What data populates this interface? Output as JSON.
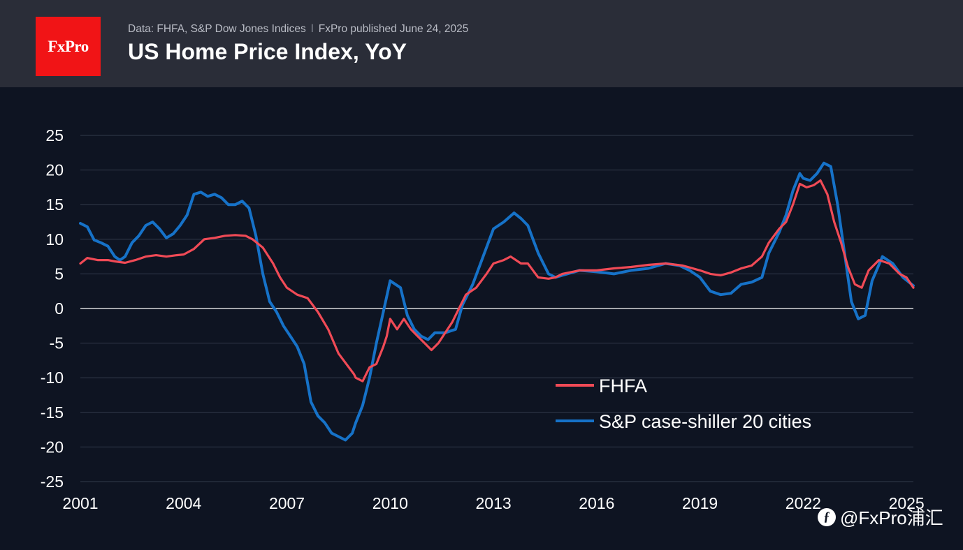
{
  "brand": {
    "logo_text": "FxPro",
    "color": "#f11416"
  },
  "header": {
    "source_text": "Data: FHFA, S&P Dow Jones Indices",
    "publisher_text": "FxPro published June 24, 2025",
    "title": "US Home Price Index, YoY"
  },
  "watermark": {
    "icon": "weibo-icon",
    "text": "@FxPro浦汇"
  },
  "chart_data": {
    "type": "line",
    "title": "US Home Price Index, YoY",
    "xlabel": "",
    "ylabel": "",
    "xlim": [
      2001,
      2025.2
    ],
    "ylim": [
      -25,
      25
    ],
    "x_ticks": [
      "2001",
      "2004",
      "2007",
      "2010",
      "2013",
      "2016",
      "2019",
      "2022",
      "2025"
    ],
    "y_ticks": [
      "25",
      "20",
      "15",
      "10",
      "5",
      "0",
      "-5",
      "-10",
      "-15",
      "-20",
      "-25"
    ],
    "grid": true,
    "legend_position": "lower-right",
    "series": [
      {
        "name": "FHFA",
        "color": "#f04a56",
        "x": [
          2001.0,
          2001.2,
          2001.5,
          2001.8,
          2002.0,
          2002.3,
          2002.6,
          2002.9,
          2003.2,
          2003.5,
          2003.8,
          2004.0,
          2004.3,
          2004.6,
          2004.9,
          2005.2,
          2005.5,
          2005.8,
          2006.0,
          2006.3,
          2006.6,
          2006.8,
          2007.0,
          2007.3,
          2007.6,
          2007.9,
          2008.2,
          2008.5,
          2008.8,
          2008.95,
          2009.0,
          2009.2,
          2009.4,
          2009.6,
          2009.8,
          2009.9,
          2010.0,
          2010.2,
          2010.4,
          2010.6,
          2010.8,
          2011.0,
          2011.2,
          2011.4,
          2011.6,
          2011.8,
          2012.0,
          2012.2,
          2012.5,
          2012.8,
          2013.0,
          2013.3,
          2013.5,
          2013.8,
          2014.0,
          2014.3,
          2014.6,
          2014.8,
          2015.0,
          2015.5,
          2016.0,
          2016.5,
          2017.0,
          2017.5,
          2018.0,
          2018.5,
          2019.0,
          2019.3,
          2019.6,
          2019.9,
          2020.2,
          2020.5,
          2020.8,
          2021.0,
          2021.3,
          2021.5,
          2021.7,
          2021.9,
          2022.1,
          2022.3,
          2022.5,
          2022.7,
          2022.9,
          2023.1,
          2023.3,
          2023.5,
          2023.7,
          2023.9,
          2024.2,
          2024.5,
          2024.8,
          2025.0,
          2025.2
        ],
        "values": [
          6.5,
          7.3,
          7.0,
          7.0,
          6.8,
          6.6,
          7.0,
          7.5,
          7.7,
          7.5,
          7.7,
          7.8,
          8.6,
          10.0,
          10.2,
          10.5,
          10.6,
          10.5,
          10.0,
          8.8,
          6.5,
          4.5,
          3.0,
          2.0,
          1.5,
          -0.5,
          -3.0,
          -6.5,
          -8.5,
          -9.5,
          -10.0,
          -10.5,
          -8.5,
          -8.0,
          -5.5,
          -4.0,
          -1.5,
          -3.0,
          -1.5,
          -3.0,
          -4.0,
          -5.0,
          -6.0,
          -5.0,
          -3.5,
          -2.0,
          0.0,
          2.0,
          3.0,
          5.0,
          6.5,
          7.0,
          7.5,
          6.5,
          6.5,
          4.5,
          4.3,
          4.5,
          5.0,
          5.5,
          5.5,
          5.8,
          6.0,
          6.3,
          6.5,
          6.2,
          5.5,
          5.0,
          4.8,
          5.2,
          5.8,
          6.2,
          7.5,
          9.5,
          11.5,
          12.5,
          15.0,
          18.0,
          17.5,
          17.8,
          18.5,
          16.5,
          12.5,
          9.5,
          6.0,
          3.5,
          3.0,
          5.5,
          7.0,
          6.5,
          5.0,
          4.5,
          3.0
        ]
      },
      {
        "name": "S&P case-shiller 20 cities",
        "color": "#1672c8",
        "x": [
          2001.0,
          2001.2,
          2001.4,
          2001.6,
          2001.8,
          2002.0,
          2002.15,
          2002.3,
          2002.5,
          2002.7,
          2002.9,
          2003.1,
          2003.3,
          2003.5,
          2003.7,
          2003.9,
          2004.1,
          2004.3,
          2004.5,
          2004.7,
          2004.9,
          2005.1,
          2005.3,
          2005.5,
          2005.7,
          2005.9,
          2006.1,
          2006.3,
          2006.5,
          2006.7,
          2006.9,
          2007.1,
          2007.3,
          2007.5,
          2007.7,
          2007.9,
          2008.1,
          2008.3,
          2008.5,
          2008.7,
          2008.9,
          2009.0,
          2009.2,
          2009.4,
          2009.6,
          2009.8,
          2010.0,
          2010.3,
          2010.5,
          2010.7,
          2010.9,
          2011.1,
          2011.3,
          2011.6,
          2011.9,
          2012.1,
          2012.4,
          2012.7,
          2013.0,
          2013.3,
          2013.6,
          2013.8,
          2014.0,
          2014.3,
          2014.6,
          2014.8,
          2015.0,
          2015.5,
          2016.0,
          2016.5,
          2017.0,
          2017.5,
          2018.0,
          2018.4,
          2018.7,
          2019.0,
          2019.3,
          2019.6,
          2019.9,
          2020.2,
          2020.5,
          2020.8,
          2021.0,
          2021.3,
          2021.5,
          2021.7,
          2021.9,
          2022.0,
          2022.2,
          2022.4,
          2022.6,
          2022.8,
          2023.0,
          2023.2,
          2023.4,
          2023.6,
          2023.8,
          2024.0,
          2024.3,
          2024.6,
          2024.9,
          2025.2
        ],
        "values": [
          12.3,
          11.8,
          9.9,
          9.5,
          9.0,
          7.5,
          7.0,
          7.5,
          9.5,
          10.5,
          12.0,
          12.5,
          11.5,
          10.2,
          10.8,
          12.0,
          13.5,
          16.5,
          16.8,
          16.2,
          16.5,
          16.0,
          15.0,
          15.0,
          15.5,
          14.5,
          10.5,
          5.0,
          1.0,
          -0.5,
          -2.5,
          -4.0,
          -5.5,
          -8.0,
          -13.5,
          -15.5,
          -16.5,
          -18.0,
          -18.5,
          -19.0,
          -18.0,
          -16.5,
          -14.0,
          -10.0,
          -5.0,
          -0.5,
          4.0,
          3.0,
          -1.0,
          -3.0,
          -4.0,
          -4.5,
          -3.5,
          -3.5,
          -3.0,
          0.5,
          3.5,
          7.5,
          11.5,
          12.5,
          13.8,
          13.0,
          12.0,
          8.0,
          5.0,
          4.5,
          4.8,
          5.5,
          5.3,
          5.0,
          5.5,
          5.8,
          6.5,
          6.2,
          5.5,
          4.5,
          2.5,
          2.0,
          2.2,
          3.5,
          3.8,
          4.5,
          8.0,
          11.0,
          13.5,
          17.0,
          19.5,
          18.8,
          18.5,
          19.5,
          21.0,
          20.5,
          15.0,
          8.0,
          1.0,
          -1.5,
          -1.0,
          4.0,
          7.5,
          6.5,
          4.5,
          3.3
        ]
      }
    ]
  }
}
